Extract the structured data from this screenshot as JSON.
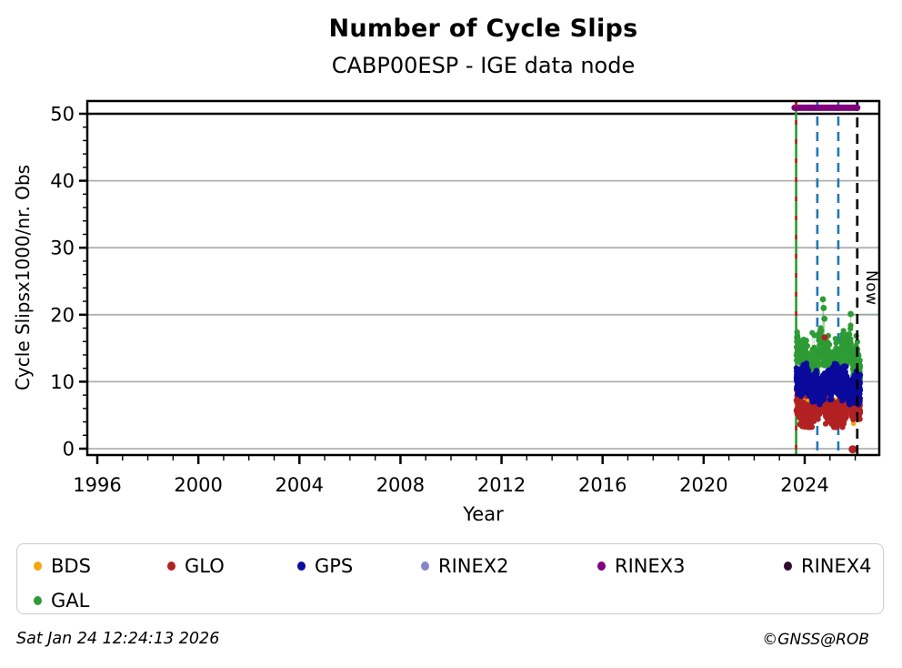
{
  "page": {
    "title": "Number of Cycle Slips",
    "subtitle": "CABP00ESP - IGE data node"
  },
  "axes": {
    "xlabel": "Year",
    "ylabel": "Cycle Slipsx1000/nr. Obs",
    "x_major_ticks": [
      1996,
      2000,
      2004,
      2008,
      2012,
      2016,
      2020,
      2024
    ],
    "x_minor_step_years": 1,
    "x_minor_range": [
      1996,
      2026
    ],
    "y_major_ticks": [
      0,
      10,
      20,
      30,
      40,
      50
    ],
    "y_minor_step": 2,
    "xlim": [
      1995.6,
      2026.95
    ],
    "ylim": [
      -0.95,
      51.9
    ],
    "grid_color": "#b0b0b0",
    "threshold_line": {
      "y": 50,
      "color": "#000000"
    }
  },
  "annotations": {
    "now_label": "Now",
    "now_year": 2026.08
  },
  "legend": [
    {
      "label": "BDS",
      "color": "#f3a512"
    },
    {
      "label": "GLO",
      "color": "#b22222"
    },
    {
      "label": "GPS",
      "color": "#0a0a9c"
    },
    {
      "label": "RINEX2",
      "color": "#8585cc"
    },
    {
      "label": "RINEX3",
      "color": "#800080"
    },
    {
      "label": "RINEX4",
      "color": "#320a32"
    },
    {
      "label": "GAL",
      "color": "#2e9b35"
    }
  ],
  "footer": {
    "generated": "Sat Jan 24 12:24:13 2026",
    "credit": "©GNSS@ROB"
  },
  "chart_data": {
    "type": "scatter",
    "title": "Number of Cycle Slips",
    "subtitle": "CABP00ESP - IGE data node",
    "xlabel": "Year",
    "ylabel": "Cycle Slipsx1000/nr. Obs",
    "xlim": [
      1995.6,
      2026.95
    ],
    "ylim": [
      -0.95,
      51.9
    ],
    "data_x_range": [
      2023.67,
      2026.2
    ],
    "series": [
      {
        "name": "BDS",
        "color": "#f3a512",
        "n": 80,
        "r": 2.8,
        "approx_y_range": [
          3.4,
          9.8
        ],
        "band": {
          "c0": 6.6,
          "a1": 0.8,
          "f1": 0.9,
          "p1": 1.0,
          "a2": 0.4,
          "f2": 2.5,
          "p2": 0.0,
          "sigma": 1.5,
          "ymin": 3.4,
          "ymax": 9.8
        }
      },
      {
        "name": "GAL",
        "color": "#2e9b35",
        "n": 620,
        "r": 3.1,
        "approx_y_range": [
          10.3,
          18.4
        ],
        "band": {
          "c0": 13.5,
          "a1": 1.4,
          "f1": 1.05,
          "p1": 0.9,
          "a2": 0.9,
          "f2": 3.4,
          "p2": 0.3,
          "sigma": 1.0,
          "ymin": 10.3,
          "ymax": 18.4,
          "tail_frac": 0.05,
          "tail_add": 2.2
        },
        "outliers": [
          [
            2024.72,
            22.3
          ],
          [
            2024.75,
            21.0
          ],
          [
            2024.78,
            19.4
          ],
          [
            2025.82,
            20.1
          ]
        ]
      },
      {
        "name": "GLO",
        "color": "#b22222",
        "n": 850,
        "r": 3.1,
        "approx_y_range": [
          3.2,
          9.7
        ],
        "band": {
          "c0": 6.1,
          "a1": 1.25,
          "f1": 0.85,
          "p1": 2.4,
          "a2": 0.6,
          "f2": 3.0,
          "p2": 0.8,
          "sigma": 1.05,
          "ymin": 3.2,
          "ymax": 9.7
        },
        "outliers": [
          [
            2024.79,
            16.6
          ],
          [
            2025.9,
            -0.1
          ]
        ]
      },
      {
        "name": "GPS",
        "color": "#0a0a9c",
        "n": 900,
        "r": 3.1,
        "approx_y_range": [
          6.6,
          13.7
        ],
        "band": {
          "c0": 9.6,
          "a1": 0.85,
          "f1": 0.75,
          "p1": 0.4,
          "a2": 0.5,
          "f2": 2.6,
          "p2": 1.5,
          "sigma": 1.0,
          "ymin": 6.6,
          "ymax": 13.7
        }
      }
    ],
    "vlines": [
      {
        "year": 2023.66,
        "style": "solid",
        "color": "#2e9b35",
        "overlay_dash_color": "#b22222",
        "meaning": "data-start"
      },
      {
        "year": 2024.5,
        "style": "dashed",
        "color": "#1f77b4"
      },
      {
        "year": 2025.33,
        "style": "dashed",
        "color": "#1f77b4"
      },
      {
        "year": 2026.08,
        "style": "dashed",
        "color": "#000000",
        "label": "Now"
      }
    ],
    "availability_bar": {
      "name": "RINEX3",
      "color": "#800080",
      "x_start": 2023.6,
      "x_end": 2026.08,
      "y": 50.9
    }
  }
}
